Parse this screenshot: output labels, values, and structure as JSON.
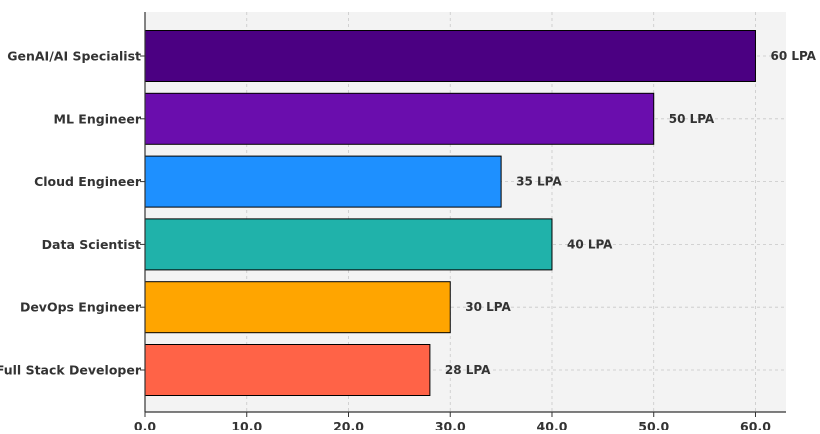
{
  "chart_data": {
    "type": "bar",
    "orientation": "horizontal",
    "title": "",
    "xlabel": "",
    "ylabel": "",
    "categories": [
      "GenAI/AI Specialist",
      "ML Engineer",
      "Cloud Engineer",
      "Data Scientist",
      "DevOps Engineer",
      "Full Stack Developer"
    ],
    "values": [
      60,
      50,
      35,
      40,
      30,
      28
    ],
    "data_labels": [
      "60 LPA",
      "50 LPA",
      "35 LPA",
      "40 LPA",
      "30 LPA",
      "28 LPA"
    ],
    "bar_colors": [
      "#4b0082",
      "#6a0dad",
      "#1e90ff",
      "#20b2aa",
      "#ffa500",
      "#ff6347"
    ],
    "xlim": [
      0,
      63
    ],
    "x_ticks": [
      0,
      10,
      20,
      30,
      40,
      50,
      60
    ],
    "x_tick_labels": [
      "0.0",
      "10.0",
      "20.0",
      "30.0",
      "40.0",
      "50.0",
      "60.0"
    ],
    "grid": true,
    "plot_background": "#f3f3f3",
    "bar_edge_color": "#000000"
  }
}
